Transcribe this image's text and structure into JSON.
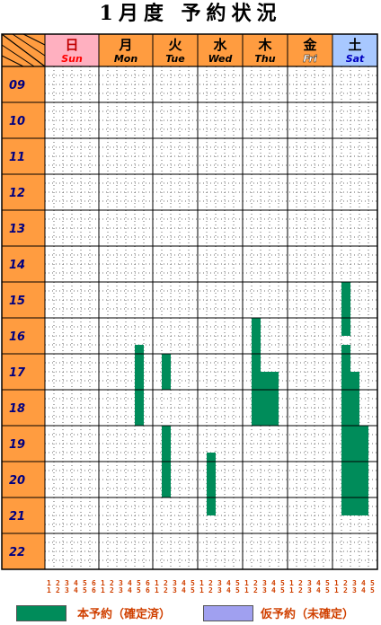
{
  "title": "1月度 予約状況",
  "days": [
    {
      "kanji": "日",
      "en": "Sun",
      "header_bg": "#ffb0c0",
      "kanji_color": "#c00000",
      "en_color": "#ff0000",
      "rooms": 6
    },
    {
      "kanji": "月",
      "en": "Mon",
      "header_bg": "#ff9c40",
      "kanji_color": "#000000",
      "en_color": "#000000",
      "rooms": 6
    },
    {
      "kanji": "火",
      "en": "Tue",
      "header_bg": "#ff9c40",
      "kanji_color": "#000000",
      "en_color": "#000000",
      "rooms": 5
    },
    {
      "kanji": "水",
      "en": "Wed",
      "header_bg": "#ff9c40",
      "kanji_color": "#000000",
      "en_color": "#000000",
      "rooms": 5
    },
    {
      "kanji": "木",
      "en": "Thu",
      "header_bg": "#ff9c40",
      "kanji_color": "#000000",
      "en_color": "#000000",
      "rooms": 5
    },
    {
      "kanji": "金",
      "en": "Fri",
      "header_bg": "#ff9c40",
      "kanji_color": "#000000",
      "en_color": "#ffffff",
      "rooms": 5
    },
    {
      "kanji": "土",
      "en": "Sat",
      "header_bg": "#a8c8ff",
      "kanji_color": "#000000",
      "en_color": "#0000c0",
      "rooms": 5
    }
  ],
  "hours": [
    "09",
    "10",
    "11",
    "12",
    "13",
    "14",
    "15",
    "16",
    "17",
    "18",
    "19",
    "20",
    "21",
    "22"
  ],
  "room_numbers": [
    "1",
    "2",
    "3",
    "4",
    "5",
    "6",
    "1",
    "2",
    "3",
    "4",
    "5",
    "6",
    "1",
    "2",
    "3",
    "4",
    "5",
    "1",
    "2",
    "3",
    "4",
    "5",
    "1",
    "2",
    "3",
    "4",
    "5",
    "1",
    "2",
    "3",
    "4",
    "5",
    "1",
    "2",
    "3",
    "4",
    "5"
  ],
  "bookings": [
    {
      "day": 1,
      "room": 4,
      "start": 16.75,
      "end": 19.0,
      "status": "confirmed"
    },
    {
      "day": 2,
      "room": 1,
      "start": 17.0,
      "end": 18.0,
      "status": "confirmed"
    },
    {
      "day": 2,
      "room": 1,
      "start": 19.0,
      "end": 21.0,
      "status": "confirmed"
    },
    {
      "day": 3,
      "room": 1,
      "start": 19.75,
      "end": 21.5,
      "status": "confirmed"
    },
    {
      "day": 4,
      "room": 1,
      "start": 16.0,
      "end": 17.5,
      "status": "confirmed"
    },
    {
      "day": 4,
      "room": 1,
      "start": 17.5,
      "end": 19.0,
      "status": "confirmed"
    },
    {
      "day": 4,
      "room": 2,
      "start": 17.5,
      "end": 19.0,
      "status": "confirmed"
    },
    {
      "day": 4,
      "room": 3,
      "start": 17.5,
      "end": 19.0,
      "status": "confirmed"
    },
    {
      "day": 6,
      "room": 1,
      "start": 15.0,
      "end": 16.5,
      "status": "confirmed"
    },
    {
      "day": 6,
      "room": 1,
      "start": 16.75,
      "end": 21.5,
      "status": "confirmed"
    },
    {
      "day": 6,
      "room": 2,
      "start": 17.5,
      "end": 21.5,
      "status": "confirmed"
    },
    {
      "day": 6,
      "room": 3,
      "start": 19.0,
      "end": 21.5,
      "status": "confirmed"
    }
  ],
  "legend": {
    "confirmed": {
      "label": "本予約（確定済）",
      "color": "#008c5a"
    },
    "tentative": {
      "label": "仮予約（未確定）",
      "color": "#a0a0f0"
    }
  },
  "colors": {
    "hour_bg": "#ff9c40",
    "grid_line": "#000000",
    "dot": "#404040",
    "hour_text": "#000080"
  }
}
